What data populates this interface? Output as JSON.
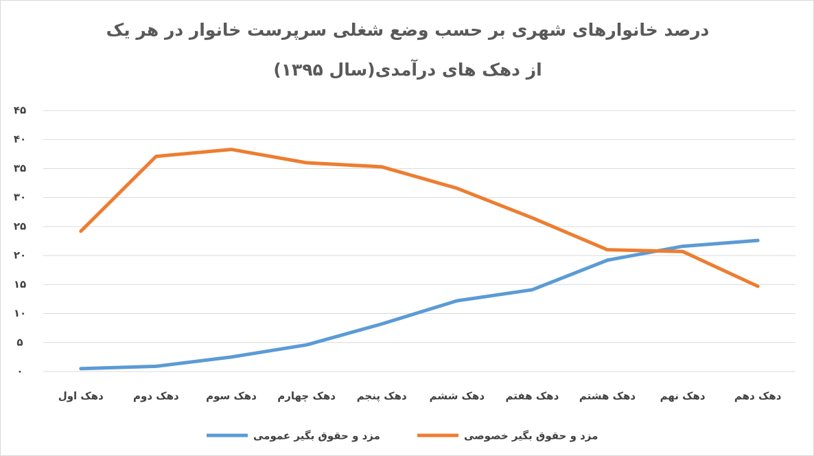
{
  "chart_data": {
    "type": "line",
    "title": "درصد خانوارهای شهری بر حسب وضع شغلی سرپرست خانوار در هر یک از دهک های درآمدی(سال ۱۳۹۵)",
    "categories": [
      "دهک اول",
      "دهک دوم",
      "دهک سوم",
      "دهک چهارم",
      "دهک پنجم",
      "دهک ششم",
      "دهک هفتم",
      "دهک هشتم",
      "دهک نهم",
      "دهک دهم"
    ],
    "series": [
      {
        "name": "مزد و حقوق بگیر عمومی",
        "color": "#5b9bd5",
        "values": [
          0.5,
          0.9,
          2.5,
          4.6,
          8.2,
          12.2,
          14.1,
          19.2,
          21.6,
          22.6
        ]
      },
      {
        "name": "مزد و حقوق بگیر خصوصی",
        "color": "#ed7d31",
        "values": [
          24.2,
          37.1,
          38.3,
          36.0,
          35.3,
          31.6,
          26.5,
          21.0,
          20.7,
          14.7
        ]
      }
    ],
    "ylim": [
      0,
      45
    ],
    "yticks": [
      {
        "value": 0,
        "label": "۰"
      },
      {
        "value": 5,
        "label": "۵"
      },
      {
        "value": 10,
        "label": "۱۰"
      },
      {
        "value": 15,
        "label": "۱۵"
      },
      {
        "value": 20,
        "label": "۲۰"
      },
      {
        "value": 25,
        "label": "۲۵"
      },
      {
        "value": 30,
        "label": "۳۰"
      },
      {
        "value": 35,
        "label": "۳۵"
      },
      {
        "value": 40,
        "label": "۴۰"
      },
      {
        "value": 45,
        "label": "۴۵"
      }
    ],
    "grid": true,
    "legend": "bottom"
  }
}
